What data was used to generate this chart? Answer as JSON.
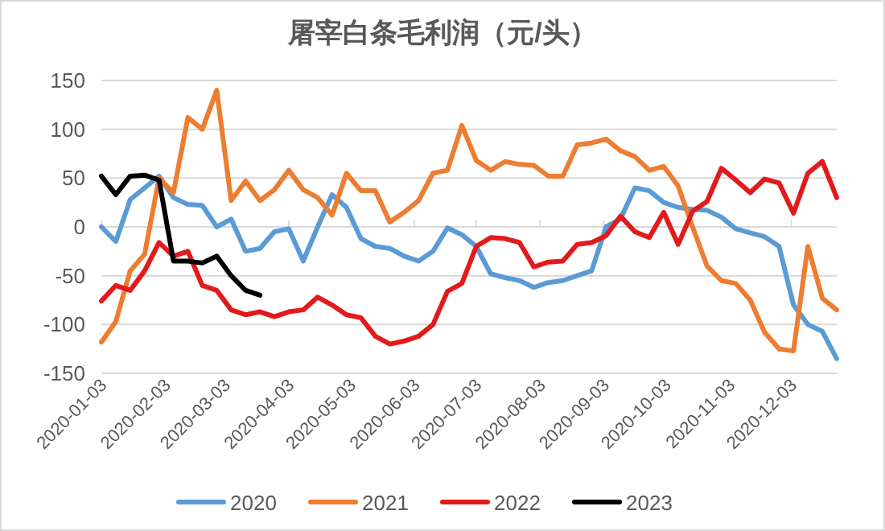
{
  "chart_data": {
    "type": "line",
    "title": "屠宰白条毛利润（元/头）",
    "x": [
      "2020-01-03",
      "2020-01-10",
      "2020-01-17",
      "2020-01-24",
      "2020-01-31",
      "2020-02-07",
      "2020-02-14",
      "2020-02-21",
      "2020-02-28",
      "2020-03-06",
      "2020-03-13",
      "2020-03-20",
      "2020-03-27",
      "2020-04-03",
      "2020-04-10",
      "2020-04-17",
      "2020-04-24",
      "2020-05-01",
      "2020-05-08",
      "2020-05-15",
      "2020-05-22",
      "2020-05-29",
      "2020-06-05",
      "2020-06-12",
      "2020-06-19",
      "2020-06-26",
      "2020-07-03",
      "2020-07-10",
      "2020-07-17",
      "2020-07-24",
      "2020-07-31",
      "2020-08-07",
      "2020-08-14",
      "2020-08-21",
      "2020-08-28",
      "2020-09-04",
      "2020-09-11",
      "2020-09-18",
      "2020-09-25",
      "2020-10-02",
      "2020-10-09",
      "2020-10-16",
      "2020-10-23",
      "2020-10-30",
      "2020-11-06",
      "2020-11-13",
      "2020-11-20",
      "2020-11-27",
      "2020-12-04",
      "2020-12-11",
      "2020-12-18",
      "2020-12-25"
    ],
    "series": [
      {
        "name": "2020",
        "color": "#5b9bd5",
        "values": [
          0,
          -15,
          28,
          40,
          52,
          30,
          23,
          22,
          0,
          8,
          -25,
          -22,
          -5,
          -2,
          -35,
          0,
          33,
          20,
          -12,
          -20,
          -22,
          -30,
          -35,
          -25,
          -1,
          -8,
          -20,
          -48,
          -52,
          -55,
          -62,
          -57,
          -55,
          -50,
          -45,
          0,
          8,
          40,
          37,
          25,
          20,
          18,
          17,
          10,
          -2,
          -6,
          -10,
          -20,
          -80,
          -100,
          -107,
          -135
        ]
      },
      {
        "name": "2021",
        "color": "#ed7d31",
        "values": [
          -118,
          -97,
          -45,
          -28,
          50,
          35,
          112,
          100,
          140,
          27,
          47,
          27,
          38,
          58,
          38,
          30,
          12,
          55,
          37,
          37,
          5,
          15,
          27,
          55,
          58,
          104,
          68,
          58,
          67,
          64,
          63,
          52,
          52,
          84,
          86,
          90,
          78,
          72,
          58,
          62,
          42,
          0,
          -40,
          -55,
          -58,
          -75,
          -108,
          -125,
          -127,
          -20,
          -73,
          -85
        ]
      },
      {
        "name": "2022",
        "color": "#e31a1c",
        "values": [
          -76,
          -60,
          -65,
          -45,
          -16,
          -30,
          -25,
          -60,
          -65,
          -85,
          -90,
          -87,
          -92,
          -87,
          -85,
          -72,
          -80,
          -90,
          -93,
          -112,
          -120,
          -117,
          -112,
          -100,
          -66,
          -58,
          -20,
          -11,
          -12,
          -16,
          -41,
          -36,
          -35,
          -18,
          -16,
          -9,
          11,
          -5,
          -11,
          15,
          -18,
          16,
          26,
          60,
          48,
          35,
          49,
          45,
          14,
          55,
          67,
          30
        ]
      },
      {
        "name": "2023",
        "color": "#000000",
        "values": [
          52,
          33,
          52,
          53,
          48,
          -35,
          -35,
          -37,
          -30,
          -50,
          -65,
          -70,
          null,
          null,
          null,
          null,
          null,
          null,
          null,
          null,
          null,
          null,
          null,
          null,
          null,
          null,
          null,
          null,
          null,
          null,
          null,
          null,
          null,
          null,
          null,
          null,
          null,
          null,
          null,
          null,
          null,
          null,
          null,
          null,
          null,
          null,
          null,
          null,
          null,
          null,
          null,
          null
        ]
      }
    ],
    "xlim": [
      "2020-01-03",
      "2020-12-25"
    ],
    "xticks": [
      "2020-01-03",
      "2020-02-03",
      "2020-03-03",
      "2020-04-03",
      "2020-05-03",
      "2020-06-03",
      "2020-07-03",
      "2020-08-03",
      "2020-09-03",
      "2020-10-03",
      "2020-11-03",
      "2020-12-03"
    ],
    "ylim": [
      -150,
      150
    ],
    "yticks": [
      -150,
      -100,
      -50,
      0,
      50,
      100,
      150
    ],
    "grid": "y",
    "legend": "bottom",
    "marker": "none",
    "line_style": "solid"
  }
}
